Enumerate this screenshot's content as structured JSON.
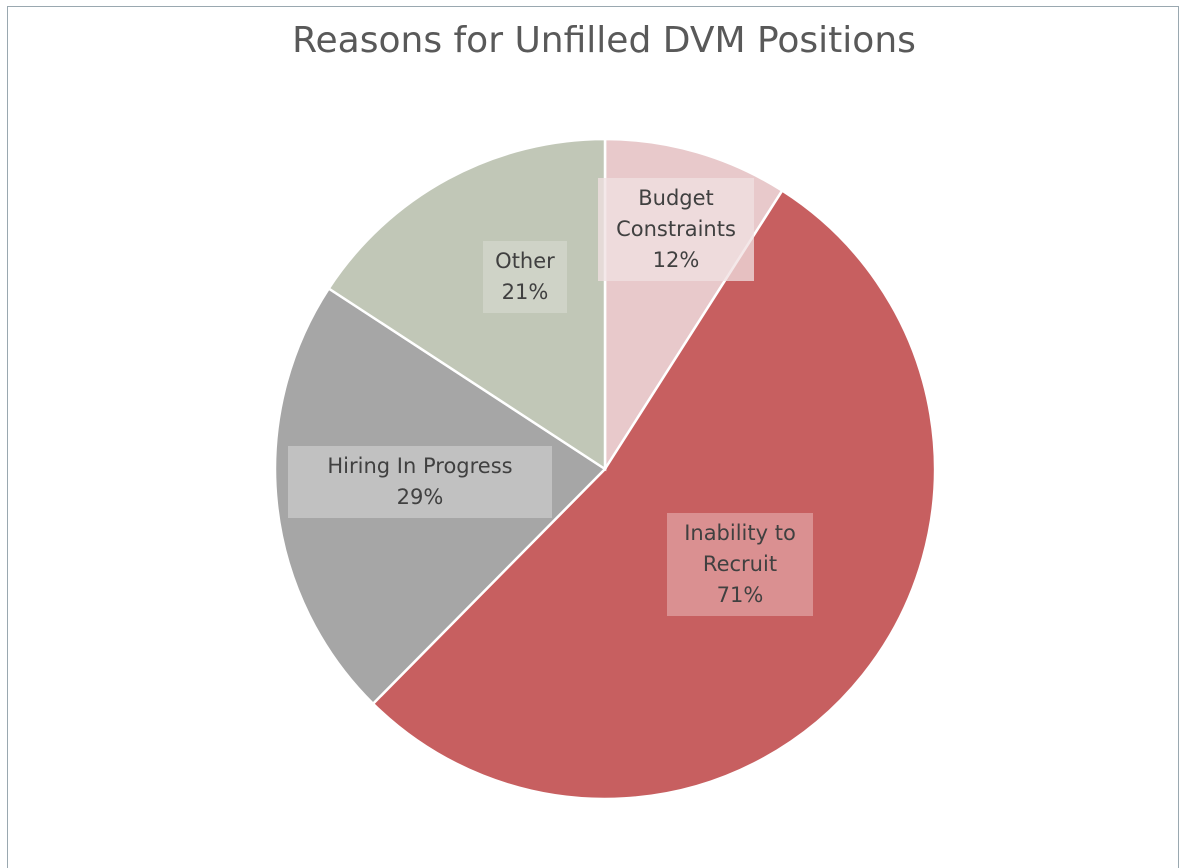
{
  "chart_data": {
    "type": "pie",
    "title": "Reasons for Unfilled DVM Positions",
    "start_angle_deg": 0,
    "direction": "clockwise",
    "slices": [
      {
        "label": "Budget Constraints",
        "value": 12,
        "percent_label": "12%",
        "color": "#e8c9cb",
        "label_lines": [
          "Budget",
          "Constraints",
          "12%"
        ]
      },
      {
        "label": "Inability to Recruit",
        "value": 71,
        "percent_label": "71%",
        "color": "#c75f60",
        "label_lines": [
          "Inability to",
          "Recruit",
          "71%"
        ]
      },
      {
        "label": "Hiring In Progress",
        "value": 29,
        "percent_label": "29%",
        "color": "#a6a6a6",
        "label_lines": [
          "Hiring In Progress",
          "29%"
        ]
      },
      {
        "label": "Other",
        "value": 21,
        "percent_label": "21%",
        "color": "#c1c7b7",
        "label_lines": [
          "Other",
          "21%"
        ]
      }
    ],
    "legend": "none",
    "slice_border_color": "#ffffff"
  }
}
